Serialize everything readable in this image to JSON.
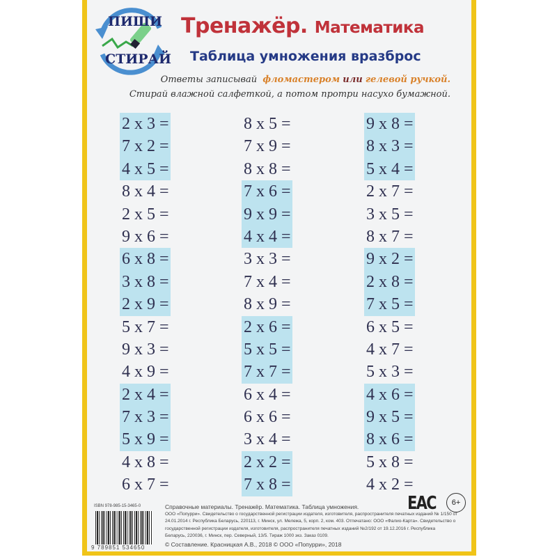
{
  "logo": {
    "top": "ПИШИ",
    "bottom": "СТИРАЙ"
  },
  "header": {
    "title_a": "Тренажёр.",
    "title_b": "Математика",
    "subtitle": "Таблица умножения вразброс",
    "instr_1a": "Ответы записывай",
    "instr_1b": "фломастером",
    "instr_1c": "или",
    "instr_1d": "гелевой ручкой.",
    "instr_2": "Стирай влажной салфеткой, а потом протри насухо бумажной."
  },
  "columns": [
    {
      "items": [
        {
          "text": "2 x 3 =",
          "highlight": true
        },
        {
          "text": "7 x 2 =",
          "highlight": true
        },
        {
          "text": "4 x 5 =",
          "highlight": true
        },
        {
          "text": "8 x 4 =",
          "highlight": false
        },
        {
          "text": "2 x 5 =",
          "highlight": false
        },
        {
          "text": "9 x 6 =",
          "highlight": false
        },
        {
          "text": "6 x 8 =",
          "highlight": true
        },
        {
          "text": "3 x 8 =",
          "highlight": true
        },
        {
          "text": "2 x 9 =",
          "highlight": true
        },
        {
          "text": "5 x 7 =",
          "highlight": false
        },
        {
          "text": "9 x 3 =",
          "highlight": false
        },
        {
          "text": "4 x 9 =",
          "highlight": false
        },
        {
          "text": "2 x 4 =",
          "highlight": true
        },
        {
          "text": "7 x 3 =",
          "highlight": true
        },
        {
          "text": "5 x 9 =",
          "highlight": true
        },
        {
          "text": "4 x 8 =",
          "highlight": false
        },
        {
          "text": "6 x 7 =",
          "highlight": false
        }
      ]
    },
    {
      "items": [
        {
          "text": "8 x 5 =",
          "highlight": false
        },
        {
          "text": "7 x 9 =",
          "highlight": false
        },
        {
          "text": "8 x 8 =",
          "highlight": false
        },
        {
          "text": "7 x 6 =",
          "highlight": true
        },
        {
          "text": "9 x 9 =",
          "highlight": true
        },
        {
          "text": "4 x 4 =",
          "highlight": true
        },
        {
          "text": "3 x 3 =",
          "highlight": false
        },
        {
          "text": "7 x 4 =",
          "highlight": false
        },
        {
          "text": "8 x 9 =",
          "highlight": false
        },
        {
          "text": "2 x 6 =",
          "highlight": true
        },
        {
          "text": "5 x 5 =",
          "highlight": true
        },
        {
          "text": "7 x 7 =",
          "highlight": true
        },
        {
          "text": "6 x 4 =",
          "highlight": false
        },
        {
          "text": "6 x 6 =",
          "highlight": false
        },
        {
          "text": "3 x 4 =",
          "highlight": false
        },
        {
          "text": "2 x 2 =",
          "highlight": true
        },
        {
          "text": "7 x 8 =",
          "highlight": true
        }
      ]
    },
    {
      "items": [
        {
          "text": "9 x 8 =",
          "highlight": true
        },
        {
          "text": "8 x 3 =",
          "highlight": true
        },
        {
          "text": "5 x 4 =",
          "highlight": true
        },
        {
          "text": "2 x 7 =",
          "highlight": false
        },
        {
          "text": "3 x 5 =",
          "highlight": false
        },
        {
          "text": "8 x 7 =",
          "highlight": false
        },
        {
          "text": "9 x 2 =",
          "highlight": true
        },
        {
          "text": "2 x 8 =",
          "highlight": true
        },
        {
          "text": "7 x 5 =",
          "highlight": true
        },
        {
          "text": "6 x 5 =",
          "highlight": false
        },
        {
          "text": "4 x 7 =",
          "highlight": false
        },
        {
          "text": "5 x 3 =",
          "highlight": false
        },
        {
          "text": "4 x 6 =",
          "highlight": true
        },
        {
          "text": "9 x 5 =",
          "highlight": true
        },
        {
          "text": "8 x 6 =",
          "highlight": true
        },
        {
          "text": "5 x 8 =",
          "highlight": false
        },
        {
          "text": "4 x 2 =",
          "highlight": false
        }
      ]
    }
  ],
  "footer": {
    "isbn": "ISBN 978-985-15-3465-0",
    "barcode_number": "9 789851 534650",
    "line1": "Справочные материалы. Тренажёр. Математика. Таблица умножения.",
    "line2": "ООО «Попурри». Свидетельство о государственной регистрации издателя, изготовителя, распространителя печатных изданий № 1/150 от 24.01.2014 г. Республика Беларусь, 220113, г. Минск, ул. Мележа, 5, корп. 2, ком. 403. Отпечатано: ООО «Фалио-Карта». Свидетельство о государственной регистрации издателя, изготовителя, распространителя печатных изданий №2/192 от 19.12.2016 г. Республика Беларусь, 220036, г. Минск, пер. Северный, 13/5. Тираж 1000 экз. Заказ 0109.",
    "copyright": "© Составление. Красницкая А.В., 2018 © ООО «Попурри», 2018",
    "eac": "ЕАС",
    "age": "6+"
  },
  "colors": {
    "frame": "#f0c419",
    "highlight": "#bde3ef",
    "title": "#c0323a",
    "subtitle": "#253a86"
  }
}
